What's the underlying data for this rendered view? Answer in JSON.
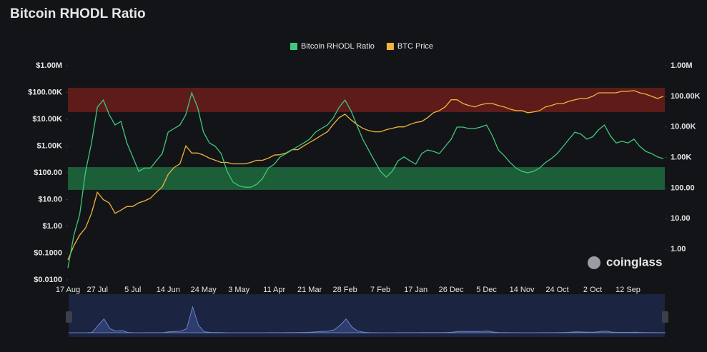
{
  "chart_data": {
    "type": "line",
    "title": "Bitcoin RHODL Ratio",
    "watermark": "coinglass",
    "legend": "top",
    "categories": [
      "17 Aug",
      null,
      null,
      null,
      null,
      "27 Jul",
      null,
      null,
      null,
      null,
      null,
      "5 Jul",
      null,
      null,
      null,
      null,
      null,
      "14 Jun",
      null,
      null,
      null,
      null,
      null,
      "24 May",
      null,
      null,
      null,
      null,
      null,
      "3 May",
      null,
      null,
      null,
      null,
      null,
      "11 Apr",
      null,
      null,
      null,
      null,
      null,
      "21 Mar",
      null,
      null,
      null,
      null,
      null,
      "28 Feb",
      null,
      null,
      null,
      null,
      null,
      "7 Feb",
      null,
      null,
      null,
      null,
      null,
      "17 Jan",
      null,
      null,
      null,
      null,
      null,
      "26 Dec",
      null,
      null,
      null,
      null,
      null,
      "5 Dec",
      null,
      null,
      null,
      null,
      null,
      "14 Nov",
      null,
      null,
      null,
      null,
      null,
      "24 Oct",
      null,
      null,
      null,
      null,
      null,
      "2 Oct",
      null,
      null,
      null,
      null,
      null,
      "12 Sep",
      null,
      null,
      null,
      null,
      null,
      null
    ],
    "series": [
      {
        "name": "Bitcoin RHODL Ratio",
        "color": "#3ec97a",
        "axis": "y",
        "values": [
          0.028,
          0.45,
          2.8,
          113,
          1300,
          28000,
          52000,
          15000,
          6100,
          8300,
          1300,
          390,
          113,
          150,
          150,
          280,
          520,
          3300,
          4500,
          6100,
          15000,
          97000,
          28000,
          3300,
          1300,
          970,
          520,
          113,
          45,
          33,
          29,
          29,
          37,
          61,
          150,
          210,
          390,
          520,
          710,
          970,
          1300,
          1800,
          3300,
          4500,
          6100,
          11000,
          28000,
          52000,
          21000,
          6100,
          1800,
          710,
          280,
          113,
          69,
          113,
          280,
          390,
          280,
          210,
          520,
          710,
          630,
          520,
          970,
          1800,
          5100,
          5100,
          4500,
          4500,
          5100,
          6100,
          2400,
          710,
          440,
          240,
          150,
          113,
          100,
          113,
          150,
          240,
          340,
          520,
          970,
          1800,
          3300,
          2800,
          1800,
          2200,
          4000,
          6100,
          2400,
          1300,
          1500,
          1300,
          1800,
          970,
          630,
          520,
          390,
          340
        ]
      },
      {
        "name": "BTC Price",
        "color": "#f0b43c",
        "axis": "y2",
        "values": [
          0.45,
          1.3,
          2.9,
          5,
          15,
          73,
          42,
          33,
          15,
          19,
          25,
          25,
          33,
          38,
          47,
          73,
          110,
          280,
          470,
          620,
          2400,
          1400,
          1400,
          1200,
          950,
          810,
          690,
          690,
          620,
          620,
          620,
          690,
          810,
          810,
          950,
          1200,
          1240,
          1400,
          1800,
          1800,
          2400,
          3100,
          4000,
          5300,
          6900,
          12000,
          20000,
          26000,
          17000,
          12000,
          9000,
          7600,
          6900,
          6900,
          8100,
          9000,
          10000,
          10000,
          12000,
          14000,
          15000,
          20000,
          29000,
          34000,
          45000,
          77000,
          77000,
          58000,
          50000,
          45000,
          53000,
          58000,
          58000,
          50000,
          45000,
          38000,
          34000,
          34000,
          29000,
          31000,
          34000,
          45000,
          50000,
          58000,
          58000,
          69000,
          77000,
          85000,
          85000,
          100000,
          130000,
          130000,
          130000,
          130000,
          146000,
          146000,
          153000,
          130000,
          117000,
          100000,
          85000,
          100000
        ]
      }
    ],
    "bands": [
      {
        "from": 18500,
        "to": 150000,
        "color": "#6b1d1a"
      },
      {
        "from": 23,
        "to": 163,
        "color": "#1f6b3e"
      }
    ],
    "log_scale": true,
    "grid": false,
    "ylim": [
      0.01,
      1000000
    ],
    "yticks": [
      {
        "value": 1000000,
        "label": "$1.00M"
      },
      {
        "value": 100000,
        "label": "$100.00K"
      },
      {
        "value": 10000,
        "label": "$10.00K"
      },
      {
        "value": 1000,
        "label": "$1.00K"
      },
      {
        "value": 100,
        "label": "$100.00"
      },
      {
        "value": 10,
        "label": "$10.00"
      },
      {
        "value": 1,
        "label": "$1.00"
      },
      {
        "value": 0.1,
        "label": "$0.1000"
      },
      {
        "value": 0.01,
        "label": "$0.0100"
      }
    ],
    "y2lim": [
      0.1,
      1000000
    ],
    "y2ticks": [
      {
        "value": 1000000,
        "label": "1.00M"
      },
      {
        "value": 100000,
        "label": "100.00K"
      },
      {
        "value": 10000,
        "label": "10.00K"
      },
      {
        "value": 1000,
        "label": "1.00K"
      },
      {
        "value": 100,
        "label": "100.00"
      },
      {
        "value": 10,
        "label": "10.00"
      },
      {
        "value": 1,
        "label": "1.00"
      }
    ]
  }
}
